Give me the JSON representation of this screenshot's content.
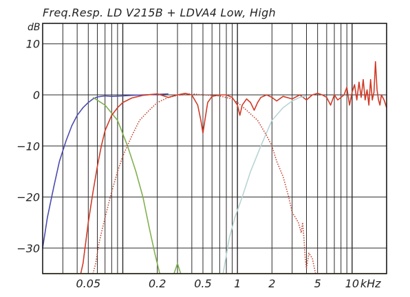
{
  "chart_data": {
    "type": "line",
    "title": "Freq.Resp. LD V215B + LDVA4 Low, High",
    "ylabel_unit": "dB",
    "xlabel_unit": "kHz",
    "x_scale": "log",
    "xlim": [
      0.02,
      20
    ],
    "ylim": [
      -35,
      14
    ],
    "grid": true,
    "y_ticks": [
      {
        "value": 10,
        "label": "10"
      },
      {
        "value": 0,
        "label": "0"
      },
      {
        "value": -10,
        "label": "−10"
      },
      {
        "value": -20,
        "label": "−20"
      },
      {
        "value": -30,
        "label": "−30"
      }
    ],
    "x_ticks": [
      {
        "value": 0.05,
        "label": "0.05"
      },
      {
        "value": 0.2,
        "label": "0.2"
      },
      {
        "value": 0.5,
        "label": "0.5"
      },
      {
        "value": 1,
        "label": "1"
      },
      {
        "value": 2,
        "label": "2"
      },
      {
        "value": 5,
        "label": "5"
      },
      {
        "value": 10,
        "label": "10"
      }
    ],
    "series": [
      {
        "color": "#4a4ab0",
        "style": "solid",
        "points": [
          [
            0.02,
            -30
          ],
          [
            0.022,
            -24
          ],
          [
            0.025,
            -18
          ],
          [
            0.028,
            -13
          ],
          [
            0.032,
            -9
          ],
          [
            0.036,
            -6
          ],
          [
            0.04,
            -4
          ],
          [
            0.045,
            -2.5
          ],
          [
            0.05,
            -1.5
          ],
          [
            0.055,
            -0.8
          ],
          [
            0.06,
            -0.4
          ],
          [
            0.07,
            -0.2
          ],
          [
            0.08,
            -0.3
          ],
          [
            0.1,
            -0.2
          ],
          [
            0.12,
            -0.1
          ],
          [
            0.15,
            0
          ],
          [
            0.2,
            0.1
          ],
          [
            0.25,
            0.2
          ]
        ]
      },
      {
        "color": "#80b050",
        "style": "solid",
        "points": [
          [
            0.055,
            -0.5
          ],
          [
            0.07,
            -2
          ],
          [
            0.09,
            -5
          ],
          [
            0.11,
            -10
          ],
          [
            0.13,
            -15
          ],
          [
            0.15,
            -20
          ],
          [
            0.17,
            -26
          ],
          [
            0.19,
            -31
          ],
          [
            0.21,
            -35
          ]
        ]
      },
      {
        "color": "#80b050",
        "style": "solid",
        "points": [
          [
            0.28,
            -35
          ],
          [
            0.3,
            -33
          ],
          [
            0.32,
            -35
          ]
        ]
      },
      {
        "color": "#d03a26",
        "style": "solid",
        "points": [
          [
            0.043,
            -35
          ],
          [
            0.045,
            -33
          ],
          [
            0.05,
            -25
          ],
          [
            0.055,
            -19
          ],
          [
            0.06,
            -14
          ],
          [
            0.065,
            -10
          ],
          [
            0.07,
            -7
          ],
          [
            0.08,
            -4
          ],
          [
            0.09,
            -2.5
          ],
          [
            0.1,
            -1.5
          ],
          [
            0.12,
            -0.6
          ],
          [
            0.15,
            -0.1
          ],
          [
            0.18,
            0.1
          ],
          [
            0.2,
            0.2
          ],
          [
            0.25,
            -0.5
          ],
          [
            0.3,
            0
          ],
          [
            0.35,
            0.3
          ],
          [
            0.4,
            0
          ],
          [
            0.45,
            -2
          ],
          [
            0.48,
            -5
          ],
          [
            0.5,
            -7.5
          ],
          [
            0.52,
            -5
          ],
          [
            0.55,
            -1.5
          ],
          [
            0.6,
            -0.3
          ],
          [
            0.7,
            0
          ],
          [
            0.8,
            0
          ],
          [
            0.9,
            -0.5
          ],
          [
            1,
            -2
          ],
          [
            1.05,
            -4
          ],
          [
            1.1,
            -2
          ],
          [
            1.2,
            -0.8
          ],
          [
            1.3,
            -1.5
          ],
          [
            1.4,
            -3
          ],
          [
            1.5,
            -1.5
          ],
          [
            1.6,
            -0.5
          ],
          [
            1.8,
            0
          ],
          [
            2,
            -0.5
          ],
          [
            2.2,
            -1.2
          ],
          [
            2.5,
            -0.3
          ],
          [
            3,
            -0.8
          ],
          [
            3.5,
            0
          ],
          [
            4,
            -1
          ],
          [
            4.5,
            0
          ],
          [
            5,
            0.3
          ],
          [
            5.5,
            0
          ],
          [
            6,
            -0.5
          ],
          [
            6.5,
            -2
          ],
          [
            7,
            0
          ],
          [
            7.5,
            -1
          ],
          [
            8,
            -0.5
          ],
          [
            8.5,
            0
          ],
          [
            9,
            1.5
          ],
          [
            9.5,
            -2
          ],
          [
            10,
            0.5
          ],
          [
            10.5,
            2
          ],
          [
            11,
            -1
          ],
          [
            11.5,
            2.5
          ],
          [
            12,
            -0.5
          ],
          [
            12.5,
            3
          ],
          [
            13,
            -1
          ],
          [
            13.5,
            1
          ],
          [
            14,
            -2
          ],
          [
            14.5,
            3
          ],
          [
            15,
            -1
          ],
          [
            15.5,
            0.5
          ],
          [
            16,
            6.5
          ],
          [
            16.5,
            1
          ],
          [
            17,
            -1
          ],
          [
            17.5,
            -2
          ],
          [
            18,
            0
          ],
          [
            19,
            -1
          ],
          [
            20,
            -2.5
          ]
        ]
      },
      {
        "color": "#c04030",
        "style": "dotted",
        "points": [
          [
            0.055,
            -35
          ],
          [
            0.058,
            -33
          ],
          [
            0.062,
            -29
          ],
          [
            0.07,
            -24
          ],
          [
            0.08,
            -19
          ],
          [
            0.09,
            -15
          ],
          [
            0.1,
            -12
          ],
          [
            0.12,
            -8
          ],
          [
            0.14,
            -5
          ],
          [
            0.17,
            -3
          ],
          [
            0.2,
            -1.5
          ],
          [
            0.25,
            -0.5
          ],
          [
            0.3,
            -0.1
          ],
          [
            0.4,
            0.2
          ],
          [
            0.5,
            0
          ],
          [
            0.7,
            -0.2
          ],
          [
            0.9,
            -0.8
          ],
          [
            1,
            -1.5
          ],
          [
            1.2,
            -3
          ],
          [
            1.5,
            -5
          ],
          [
            1.8,
            -8
          ],
          [
            2,
            -10
          ],
          [
            2.2,
            -13
          ],
          [
            2.5,
            -16
          ],
          [
            2.8,
            -20
          ],
          [
            3,
            -23
          ],
          [
            3.2,
            -24
          ],
          [
            3.4,
            -25
          ],
          [
            3.6,
            -27
          ],
          [
            3.7,
            -25
          ],
          [
            3.8,
            -28
          ],
          [
            3.9,
            -32
          ],
          [
            4,
            -34
          ],
          [
            4.2,
            -31
          ],
          [
            4.5,
            -32
          ],
          [
            4.8,
            -35
          ]
        ]
      },
      {
        "color": "#b8d4d4",
        "style": "solid",
        "points": [
          [
            0.75,
            -35
          ],
          [
            0.85,
            -28
          ],
          [
            0.95,
            -24
          ],
          [
            1.1,
            -20
          ],
          [
            1.3,
            -15
          ],
          [
            1.6,
            -10
          ],
          [
            2,
            -5
          ],
          [
            2.5,
            -2.5
          ],
          [
            3,
            -1.2
          ],
          [
            3.5,
            -0.5
          ],
          [
            4,
            -0.2
          ]
        ]
      },
      {
        "color": "#c8b030",
        "style": "solid",
        "points": [
          [
            0.02,
            -35
          ],
          [
            0.035,
            -35
          ],
          [
            0.2,
            -35
          ],
          [
            0.6,
            -35
          ],
          [
            2,
            -35
          ],
          [
            8,
            -35
          ],
          [
            20,
            -35
          ]
        ]
      }
    ]
  }
}
